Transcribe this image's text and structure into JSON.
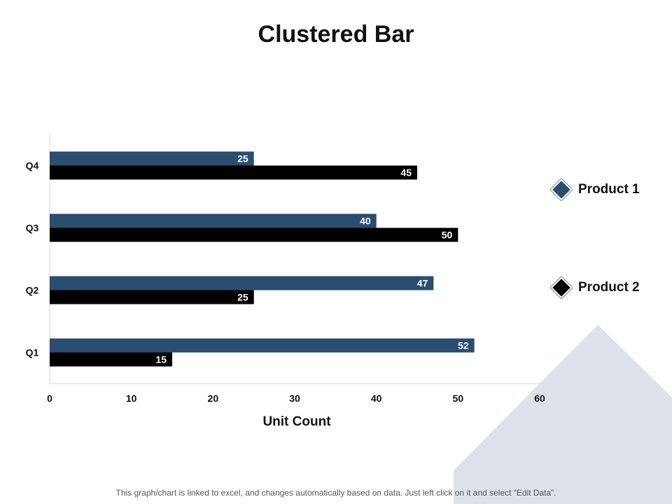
{
  "title": "Clustered Bar",
  "footer_note": "This graph/chart is linked to excel, and changes automatically based on data. Just left click on it and select “Edit Data”.",
  "colors": {
    "product1": "#2a4d70",
    "product2": "#000000",
    "decoration": "#dde2ea",
    "axis": "#d9d9d9"
  },
  "chart_data": {
    "type": "bar",
    "orientation": "horizontal",
    "categories": [
      "Q1",
      "Q2",
      "Q3",
      "Q4"
    ],
    "series": [
      {
        "name": "Product 1",
        "values": [
          52,
          47,
          40,
          25
        ]
      },
      {
        "name": "Product 2",
        "values": [
          15,
          25,
          50,
          45
        ]
      }
    ],
    "xlabel": "Unit Count",
    "ylabel": "",
    "xlim": [
      0,
      60
    ],
    "x_ticks": [
      "0",
      "10",
      "20",
      "30",
      "40",
      "50",
      "60"
    ],
    "grid": false,
    "legend_position": "right",
    "data_labels": true
  }
}
